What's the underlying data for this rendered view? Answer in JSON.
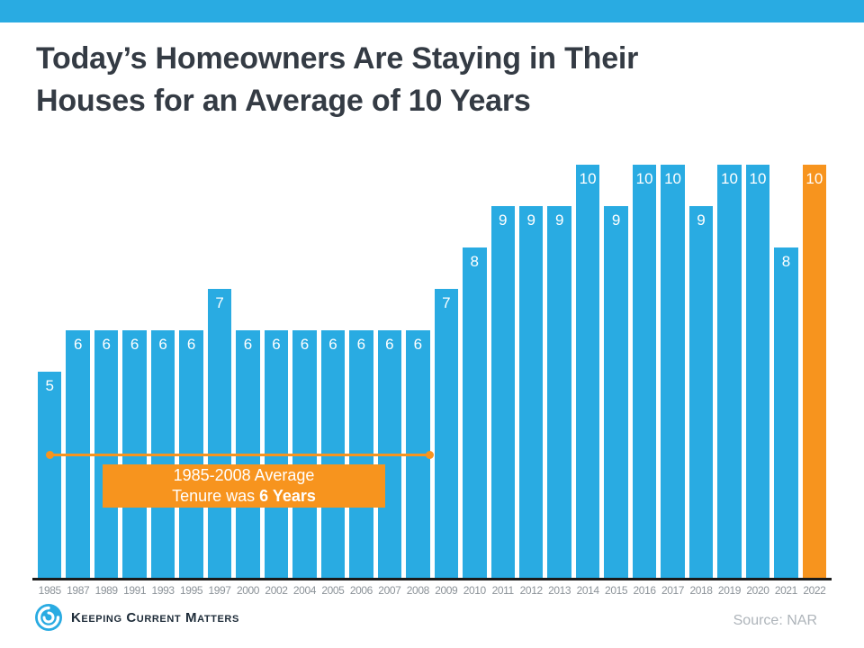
{
  "page": {
    "accent_color": "#29ABE2",
    "background": "#FFFFFF"
  },
  "header": {
    "title_line1": "Today’s Homeowners Are Staying in Their",
    "title_line2": "Houses for an Average of 10 Years"
  },
  "chart_data": {
    "type": "bar",
    "title": "Today’s Homeowners Are Staying in Their Houses for an Average of 10 Years",
    "categories": [
      "1985",
      "1987",
      "1989",
      "1991",
      "1993",
      "1995",
      "1997",
      "2000",
      "2002",
      "2004",
      "2005",
      "2006",
      "2007",
      "2008",
      "2009",
      "2010",
      "2011",
      "2012",
      "2013",
      "2014",
      "2015",
      "2016",
      "2017",
      "2018",
      "2019",
      "2020",
      "2021",
      "2022"
    ],
    "values": [
      5,
      6,
      6,
      6,
      6,
      6,
      7,
      6,
      6,
      6,
      6,
      6,
      6,
      6,
      7,
      8,
      9,
      9,
      9,
      10,
      9,
      10,
      10,
      9,
      10,
      10,
      8,
      10
    ],
    "ylim": [
      0,
      10
    ],
    "grid": false,
    "legend": false,
    "bar_color": "#29ABE2",
    "highlight_color": "#F7941E",
    "highlight_index": 27,
    "value_label_color": "#FFFFFF",
    "axis_line_color": "#1B1B1B",
    "tick_label_color": "#8C9399",
    "annotation": {
      "text_line1": "1985-2008 Average",
      "text_line2_prefix": "Tenure was ",
      "text_line2_bold": "6 Years",
      "box_color": "#F7941E",
      "text_color": "#FFFFFF",
      "line_from_year": "1985",
      "line_to_year": "2008"
    }
  },
  "footer": {
    "brand": "Keeping Current Matters",
    "source": "Source: NAR"
  }
}
